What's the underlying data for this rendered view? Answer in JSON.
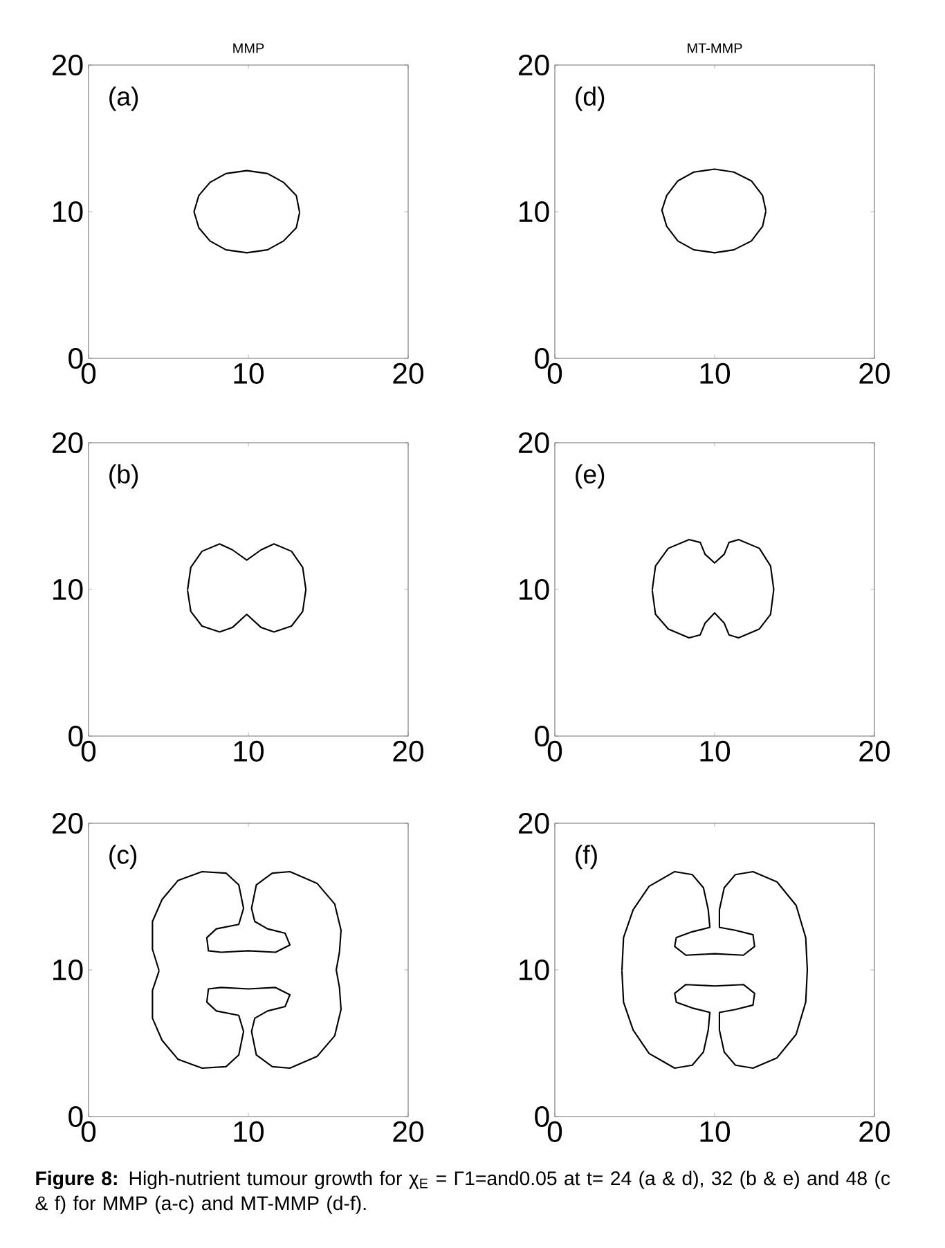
{
  "chart_data": [
    {
      "type": "line",
      "title": "MMP",
      "annotations": [
        "(a)"
      ],
      "xlim": [
        0,
        20
      ],
      "ylim": [
        0,
        20
      ],
      "xticks": [
        0,
        10,
        20
      ],
      "yticks": [
        0,
        10,
        20
      ],
      "series": [
        {
          "color": "#000000",
          "x": [
            13.2,
            13.0,
            12.2,
            11.2,
            9.9,
            8.6,
            7.6,
            6.9,
            6.6,
            6.9,
            7.6,
            8.6,
            9.9,
            11.2,
            12.2,
            13.0,
            13.2
          ],
          "values": [
            10,
            11.1,
            12.0,
            12.6,
            12.8,
            12.6,
            12.0,
            11.1,
            10,
            8.9,
            8.0,
            7.4,
            7.2,
            7.4,
            8.0,
            8.9,
            9.9
          ]
        }
      ]
    },
    {
      "type": "line",
      "title": "MT-MMP",
      "annotations": [
        "(d)"
      ],
      "xlim": [
        0,
        20
      ],
      "ylim": [
        0,
        20
      ],
      "xticks": [
        0,
        10,
        20
      ],
      "yticks": [
        0,
        10,
        20
      ],
      "series": [
        {
          "color": "#000000",
          "x": [
            13.2,
            13.0,
            12.3,
            11.2,
            10.0,
            8.7,
            7.7,
            7.0,
            6.7,
            7.0,
            7.7,
            8.7,
            10.0,
            11.2,
            12.3,
            13.0,
            13.2
          ],
          "values": [
            10.1,
            11.1,
            12.1,
            12.7,
            12.9,
            12.7,
            12.1,
            11.1,
            10.1,
            9.0,
            8.0,
            7.4,
            7.2,
            7.4,
            8.0,
            9.0,
            10.0
          ]
        }
      ]
    },
    {
      "type": "line",
      "annotations": [
        "(b)"
      ],
      "xlim": [
        0,
        20
      ],
      "ylim": [
        0,
        20
      ],
      "xticks": [
        0,
        10,
        20
      ],
      "yticks": [
        0,
        10,
        20
      ],
      "series": [
        {
          "color": "#000000",
          "x": [
            6.2,
            6.4,
            7.1,
            8.2,
            9.0,
            9.9,
            10.8,
            11.6,
            12.7,
            13.4,
            13.6,
            13.4,
            12.7,
            11.6,
            10.8,
            9.9,
            9.0,
            8.2,
            7.1,
            6.4,
            6.2
          ],
          "values": [
            10,
            11.5,
            12.6,
            13.1,
            12.7,
            12.0,
            12.7,
            13.1,
            12.6,
            11.5,
            10,
            8.5,
            7.5,
            7.1,
            7.4,
            8.3,
            7.4,
            7.1,
            7.5,
            8.5,
            9.9
          ]
        }
      ]
    },
    {
      "type": "line",
      "annotations": [
        "(e)"
      ],
      "xlim": [
        0,
        20
      ],
      "ylim": [
        0,
        20
      ],
      "xticks": [
        0,
        10,
        20
      ],
      "yticks": [
        0,
        10,
        20
      ],
      "series": [
        {
          "color": "#000000",
          "x": [
            6.1,
            6.3,
            7.1,
            8.4,
            9.1,
            9.4,
            10.0,
            10.6,
            10.9,
            11.5,
            12.8,
            13.5,
            13.7,
            13.5,
            12.8,
            11.5,
            10.9,
            10.6,
            10.0,
            9.4,
            9.1,
            8.4,
            7.1,
            6.3,
            6.1
          ],
          "values": [
            10,
            11.6,
            12.8,
            13.4,
            13.2,
            12.4,
            11.8,
            12.4,
            13.2,
            13.4,
            12.8,
            11.6,
            10,
            8.3,
            7.3,
            6.7,
            6.9,
            7.7,
            8.4,
            7.7,
            6.9,
            6.7,
            7.3,
            8.3,
            9.9
          ]
        }
      ]
    },
    {
      "type": "line",
      "annotations": [
        "(c)"
      ],
      "xlim": [
        0,
        20
      ],
      "ylim": [
        0,
        20
      ],
      "xticks": [
        0,
        10,
        20
      ],
      "yticks": [
        0,
        10,
        20
      ],
      "series": [
        {
          "color": "#000000",
          "x": [
            4.4,
            4.0,
            4.0,
            4.6,
            5.6,
            7.1,
            8.6,
            9.4,
            9.7,
            9.4,
            8.0,
            7.4,
            7.5,
            8.3,
            10.0,
            11.7,
            12.6,
            12.3,
            11.2,
            10.4,
            10.2,
            10.5,
            11.5,
            12.6,
            14.3,
            15.4,
            15.8,
            15.7,
            15.5,
            15.7,
            15.8,
            15.4,
            14.3,
            12.6,
            11.5,
            10.5,
            10.2,
            10.4,
            11.2,
            12.3,
            12.6,
            11.7,
            10.0,
            8.3,
            7.5,
            7.4,
            8.0,
            9.4,
            9.7,
            9.4,
            8.6,
            7.1,
            5.6,
            4.6,
            4.0,
            4.0,
            4.4
          ],
          "values": [
            10.0,
            11.4,
            13.3,
            14.8,
            16.1,
            16.7,
            16.6,
            15.8,
            14.2,
            13.1,
            12.8,
            12.2,
            11.3,
            11.2,
            11.3,
            11.2,
            11.7,
            12.5,
            12.8,
            13.3,
            14.2,
            15.8,
            16.6,
            16.7,
            15.9,
            14.5,
            12.7,
            11.2,
            10.0,
            8.8,
            7.3,
            5.5,
            4.1,
            3.3,
            3.4,
            4.2,
            5.8,
            6.7,
            7.2,
            7.5,
            8.3,
            8.8,
            8.7,
            8.8,
            8.7,
            7.8,
            7.2,
            6.9,
            5.8,
            4.2,
            3.4,
            3.3,
            3.9,
            5.2,
            6.7,
            8.6,
            9.9
          ]
        }
      ]
    },
    {
      "type": "line",
      "annotations": [
        "(f)",
        "**Figure 8:** High-nutrient tumour growth for χ$_{E}$ = Γ1=and0.05 at t= 24 (a & d), 32 (b & e) and 48 (c & f) for MMP (a-c) and MT-MMP (d-f)."
      ],
      "xlim": [
        0,
        20
      ],
      "ylim": [
        0,
        20
      ],
      "xticks": [
        0,
        10,
        20
      ],
      "yticks": [
        0,
        10,
        20
      ],
      "series": [
        {
          "color": "#000000",
          "x": [
            4.2,
            4.3,
            4.9,
            5.9,
            7.5,
            8.6,
            9.3,
            9.6,
            9.7,
            8.6,
            7.6,
            7.5,
            8.2,
            10.0,
            11.8,
            12.5,
            12.4,
            11.3,
            10.3,
            10.3,
            10.6,
            11.3,
            12.4,
            13.9,
            15.1,
            15.7,
            15.8,
            15.7,
            15.1,
            13.9,
            12.4,
            11.3,
            10.6,
            10.3,
            10.3,
            11.3,
            12.4,
            12.5,
            11.8,
            10.0,
            8.2,
            7.5,
            7.6,
            8.6,
            9.7,
            9.6,
            9.3,
            8.6,
            7.5,
            5.9,
            4.9,
            4.3,
            4.2
          ],
          "values": [
            10.0,
            12.2,
            14.1,
            15.7,
            16.7,
            16.5,
            15.6,
            14.1,
            12.9,
            12.6,
            12.2,
            11.6,
            11.0,
            11.1,
            11.0,
            11.6,
            12.4,
            12.7,
            12.9,
            14.1,
            15.6,
            16.5,
            16.7,
            16.0,
            14.4,
            12.2,
            10.0,
            7.8,
            5.6,
            4.0,
            3.3,
            3.5,
            4.4,
            5.9,
            7.1,
            7.3,
            7.6,
            8.4,
            9.0,
            8.9,
            9.0,
            8.4,
            7.8,
            7.4,
            7.1,
            5.9,
            4.4,
            3.5,
            3.3,
            4.3,
            5.9,
            7.8,
            9.9
          ]
        }
      ]
    }
  ]
}
